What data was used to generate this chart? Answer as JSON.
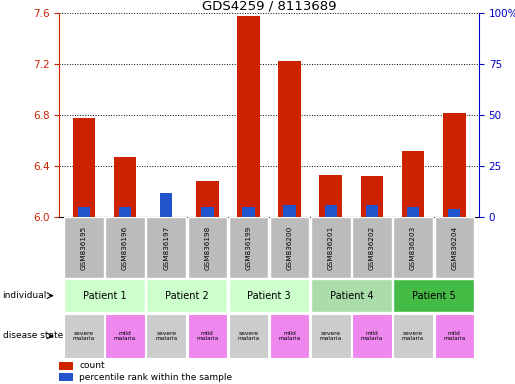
{
  "title": "GDS4259 / 8113689",
  "samples": [
    "GSM836195",
    "GSM836196",
    "GSM836197",
    "GSM836198",
    "GSM836199",
    "GSM836200",
    "GSM836201",
    "GSM836202",
    "GSM836203",
    "GSM836204"
  ],
  "red_values": [
    6.78,
    6.47,
    6.0,
    6.28,
    7.58,
    7.23,
    6.33,
    6.32,
    6.52,
    6.82
  ],
  "blue_percentiles": [
    5,
    5,
    12,
    5,
    5,
    6,
    6,
    6,
    5,
    4
  ],
  "ymin": 6.0,
  "ymax": 7.6,
  "yticks": [
    6.0,
    6.4,
    6.8,
    7.2,
    7.6
  ],
  "right_yticks": [
    0,
    25,
    50,
    75,
    100
  ],
  "patients": [
    {
      "label": "Patient 1",
      "cols": [
        0,
        1
      ],
      "color": "#ccffcc"
    },
    {
      "label": "Patient 2",
      "cols": [
        2,
        3
      ],
      "color": "#ccffcc"
    },
    {
      "label": "Patient 3",
      "cols": [
        4,
        5
      ],
      "color": "#ccffcc"
    },
    {
      "label": "Patient 4",
      "cols": [
        6,
        7
      ],
      "color": "#aaddaa"
    },
    {
      "label": "Patient 5",
      "cols": [
        8,
        9
      ],
      "color": "#44bb44"
    }
  ],
  "disease_labels": [
    {
      "text": "severe\nmalaria",
      "color": "#cccccc"
    },
    {
      "text": "mild\nmalaria",
      "color": "#ee88ee"
    },
    {
      "text": "severe\nmalaria",
      "color": "#cccccc"
    },
    {
      "text": "mild\nmalaria",
      "color": "#ee88ee"
    },
    {
      "text": "severe\nmalaria",
      "color": "#cccccc"
    },
    {
      "text": "mild\nmalaria",
      "color": "#ee88ee"
    },
    {
      "text": "severe\nmalaria",
      "color": "#cccccc"
    },
    {
      "text": "mild\nmalaria",
      "color": "#ee88ee"
    },
    {
      "text": "severe\nmalaria",
      "color": "#cccccc"
    },
    {
      "text": "mild\nmalaria",
      "color": "#ee88ee"
    }
  ],
  "red_color": "#cc2200",
  "blue_color": "#2255cc",
  "sample_box_color": "#bbbbbb",
  "individual_label": "individual",
  "disease_label": "disease state",
  "left_axis_color": "#cc2200",
  "right_axis_color": "#0000cc"
}
